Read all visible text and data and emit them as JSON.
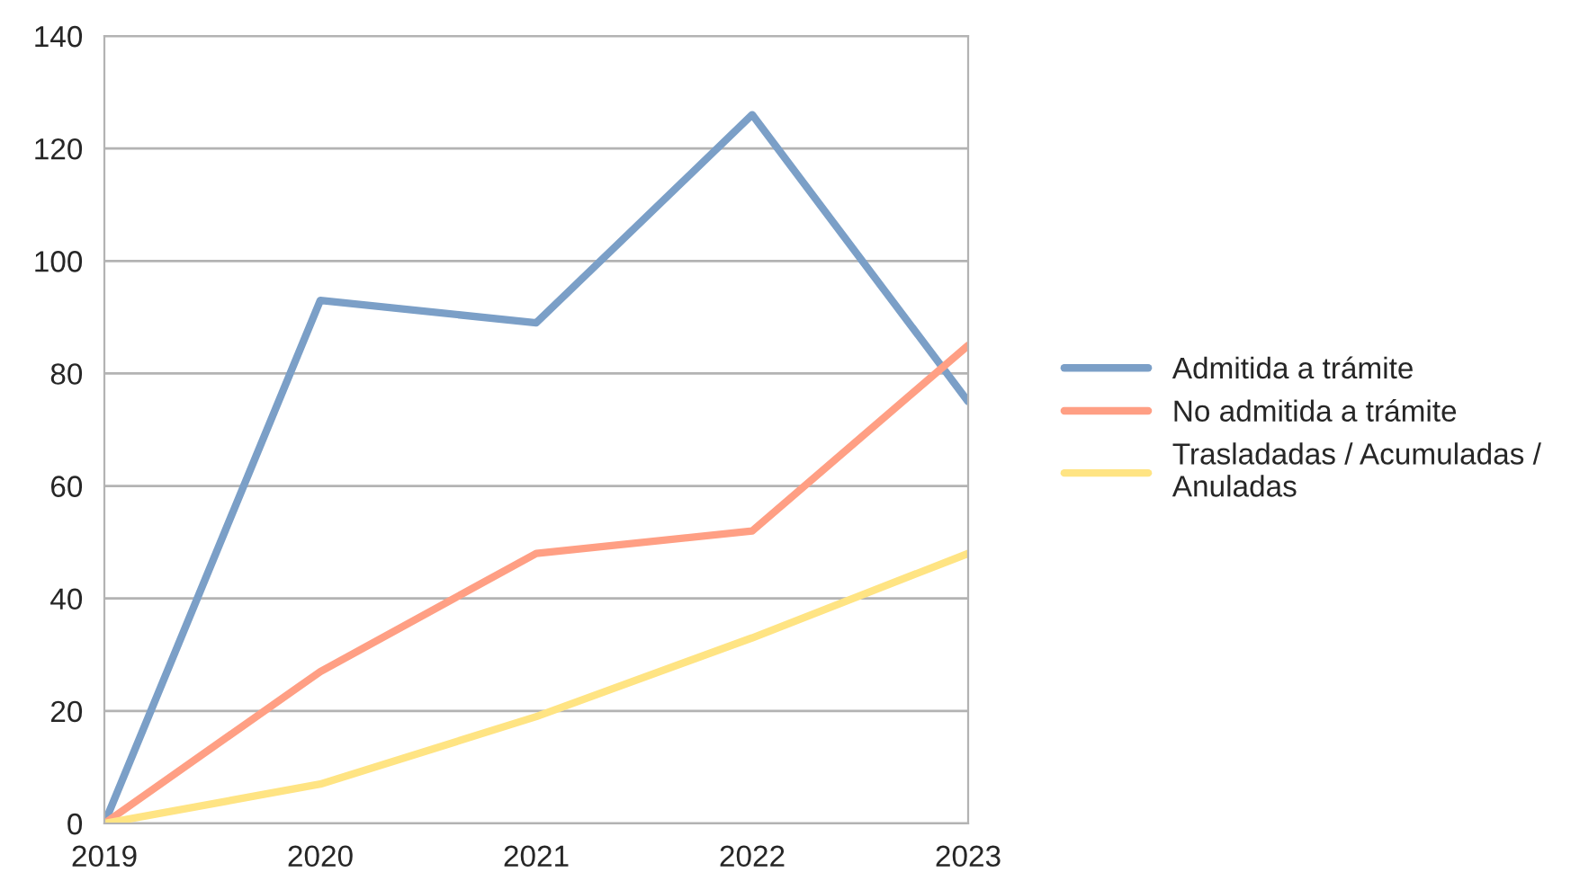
{
  "chart_data": {
    "type": "line",
    "x": [
      2019,
      2020,
      2021,
      2022,
      2023
    ],
    "series": [
      {
        "name": "Admitida a trámite",
        "color": "#7b9fc7",
        "values": [
          0,
          93,
          89,
          126,
          75
        ]
      },
      {
        "name": "No admitida a trámite",
        "color": "#ff9f84",
        "values": [
          0,
          27,
          48,
          52,
          85
        ]
      },
      {
        "name": "Trasladadas / Acumuladas / Anuladas",
        "color": "#ffe483",
        "values": [
          0,
          7,
          19,
          33,
          48
        ]
      }
    ],
    "xlim": [
      2019,
      2023
    ],
    "xticks": [
      2019,
      2020,
      2021,
      2022,
      2023
    ],
    "ylim": [
      0,
      140
    ],
    "yticks": [
      0,
      20,
      40,
      60,
      80,
      100,
      120,
      140
    ],
    "grid": "y",
    "legend": "right",
    "marker": "none",
    "line_style": "solid"
  }
}
